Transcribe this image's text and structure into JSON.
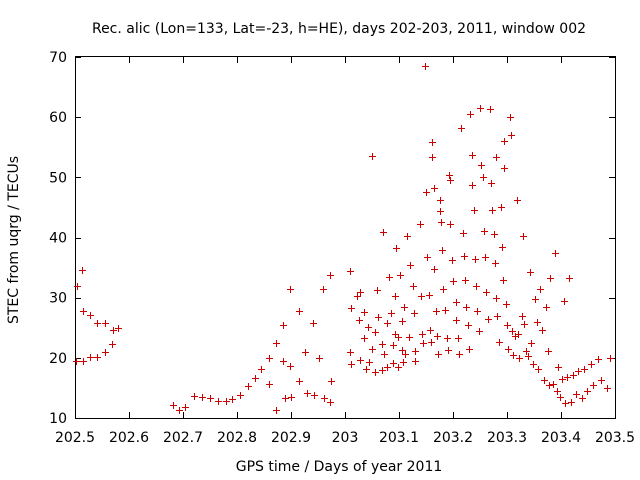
{
  "chart_data": {
    "type": "scatter",
    "title": "Rec. alic (Lon=133, Lat=-23, h=HE), days 202-203, 2011, window 002",
    "xlabel": "GPS time / Days of year 2011",
    "ylabel": "STEC from uqrg / TECUs",
    "xlim": [
      202.5,
      203.5
    ],
    "ylim": [
      10,
      70
    ],
    "grid": false,
    "legend": "none",
    "x_ticks": [
      202.5,
      202.6,
      202.7,
      202.8,
      202.9,
      203.0,
      203.1,
      203.2,
      203.3,
      203.4,
      203.5
    ],
    "x_tick_labels": [
      "202.5",
      "202.6",
      "202.7",
      "202.8",
      "202.9",
      "203",
      "203.1",
      "203.2",
      "203.3",
      "203.4",
      "203.5"
    ],
    "y_ticks": [
      10,
      20,
      30,
      40,
      50,
      60,
      70
    ],
    "y_tick_labels": [
      "10",
      "20",
      "30",
      "40",
      "50",
      "60",
      "70"
    ],
    "marker": "+",
    "color": "#cc0000",
    "series": [
      {
        "name": "STEC",
        "points": [
          [
            202.503,
            32.0
          ],
          [
            202.513,
            34.6
          ],
          [
            202.515,
            27.8
          ],
          [
            202.528,
            27.2
          ],
          [
            202.54,
            25.8
          ],
          [
            202.555,
            25.8
          ],
          [
            202.57,
            24.7
          ],
          [
            202.58,
            25.0
          ],
          [
            202.568,
            22.3
          ],
          [
            202.502,
            19.5
          ],
          [
            202.515,
            19.4
          ],
          [
            202.528,
            20.2
          ],
          [
            202.54,
            20.2
          ],
          [
            202.555,
            21.0
          ],
          [
            202.682,
            12.2
          ],
          [
            202.693,
            11.3
          ],
          [
            202.703,
            11.8
          ],
          [
            202.72,
            13.6
          ],
          [
            202.735,
            13.5
          ],
          [
            202.75,
            13.3
          ],
          [
            202.765,
            12.8
          ],
          [
            202.78,
            12.8
          ],
          [
            202.79,
            13.2
          ],
          [
            202.805,
            13.9
          ],
          [
            202.82,
            15.3
          ],
          [
            202.833,
            16.6
          ],
          [
            202.845,
            18.2
          ],
          [
            202.86,
            19.9
          ],
          [
            202.86,
            15.7
          ],
          [
            202.872,
            22.5
          ],
          [
            202.873,
            11.3
          ],
          [
            202.885,
            25.5
          ],
          [
            202.885,
            19.5
          ],
          [
            202.888,
            13.3
          ],
          [
            202.898,
            31.5
          ],
          [
            202.898,
            18.6
          ],
          [
            202.9,
            13.5
          ],
          [
            202.915,
            27.8
          ],
          [
            202.915,
            16.2
          ],
          [
            202.925,
            21.0
          ],
          [
            202.93,
            14.1
          ],
          [
            202.94,
            25.8
          ],
          [
            202.942,
            13.8
          ],
          [
            202.952,
            20.0
          ],
          [
            202.96,
            31.5
          ],
          [
            202.962,
            13.3
          ],
          [
            202.972,
            33.8
          ],
          [
            202.972,
            12.7
          ],
          [
            202.975,
            16.2
          ],
          [
            203.01,
            34.4
          ],
          [
            203.012,
            28.3
          ],
          [
            203.01,
            21.0
          ],
          [
            203.012,
            18.9
          ],
          [
            203.022,
            30.2
          ],
          [
            203.025,
            26.3
          ],
          [
            203.028,
            19.6
          ],
          [
            203.028,
            31.0
          ],
          [
            203.035,
            27.7
          ],
          [
            203.035,
            23.3
          ],
          [
            203.038,
            18.2
          ],
          [
            203.042,
            25.2
          ],
          [
            203.045,
            19.3
          ],
          [
            203.05,
            53.5
          ],
          [
            203.05,
            21.5
          ],
          [
            203.055,
            24.3
          ],
          [
            203.055,
            17.7
          ],
          [
            203.06,
            31.3
          ],
          [
            203.062,
            26.8
          ],
          [
            203.068,
            22.3
          ],
          [
            203.068,
            17.9
          ],
          [
            203.07,
            40.9
          ],
          [
            203.072,
            20.7
          ],
          [
            203.078,
            25.8
          ],
          [
            203.078,
            18.4
          ],
          [
            203.082,
            33.5
          ],
          [
            203.085,
            27.5
          ],
          [
            203.088,
            22.2
          ],
          [
            203.088,
            19.2
          ],
          [
            203.092,
            24.0
          ],
          [
            203.092,
            30.2
          ],
          [
            203.095,
            38.2
          ],
          [
            203.098,
            23.5
          ],
          [
            203.098,
            18.5
          ],
          [
            203.102,
            33.7
          ],
          [
            203.105,
            26.2
          ],
          [
            203.105,
            21.3
          ],
          [
            203.108,
            19.3
          ],
          [
            203.11,
            28.5
          ],
          [
            203.112,
            20.7
          ],
          [
            203.115,
            40.2
          ],
          [
            203.118,
            23.5
          ],
          [
            203.12,
            35.5
          ],
          [
            203.125,
            32.0
          ],
          [
            203.128,
            27.4
          ],
          [
            203.13,
            21.2
          ],
          [
            203.13,
            19.5
          ],
          [
            203.138,
            42.2
          ],
          [
            203.14,
            30.2
          ],
          [
            203.142,
            24.0
          ],
          [
            203.145,
            22.5
          ],
          [
            203.148,
            68.5
          ],
          [
            203.15,
            47.5
          ],
          [
            203.152,
            36.7
          ],
          [
            203.155,
            30.5
          ],
          [
            203.158,
            24.7
          ],
          [
            203.16,
            22.6
          ],
          [
            203.162,
            55.8
          ],
          [
            203.162,
            53.3
          ],
          [
            203.165,
            48.3
          ],
          [
            203.165,
            34.7
          ],
          [
            203.168,
            27.8
          ],
          [
            203.17,
            23.7
          ],
          [
            203.172,
            20.7
          ],
          [
            203.175,
            46.2
          ],
          [
            203.175,
            44.4
          ],
          [
            203.178,
            42.5
          ],
          [
            203.18,
            38.0
          ],
          [
            203.182,
            31.5
          ],
          [
            203.185,
            28.0
          ],
          [
            203.188,
            23.3
          ],
          [
            203.19,
            21.3
          ],
          [
            203.192,
            50.4
          ],
          [
            203.195,
            49.5
          ],
          [
            203.195,
            42.2
          ],
          [
            203.198,
            36.3
          ],
          [
            203.2,
            32.7
          ],
          [
            203.205,
            29.3
          ],
          [
            203.205,
            26.3
          ],
          [
            203.21,
            23.3
          ],
          [
            203.212,
            20.6
          ],
          [
            203.215,
            58.2
          ],
          [
            203.218,
            40.7
          ],
          [
            203.22,
            37.0
          ],
          [
            203.222,
            33.0
          ],
          [
            203.225,
            28.4
          ],
          [
            203.228,
            25.5
          ],
          [
            203.23,
            21.5
          ],
          [
            203.232,
            60.5
          ],
          [
            203.235,
            53.7
          ],
          [
            203.235,
            48.7
          ],
          [
            203.238,
            44.5
          ],
          [
            203.24,
            36.5
          ],
          [
            203.242,
            32.0
          ],
          [
            203.245,
            27.8
          ],
          [
            203.248,
            24.5
          ],
          [
            203.25,
            61.5
          ],
          [
            203.252,
            52.0
          ],
          [
            203.255,
            50.0
          ],
          [
            203.258,
            41.0
          ],
          [
            203.26,
            36.7
          ],
          [
            203.262,
            31.0
          ],
          [
            203.265,
            26.5
          ],
          [
            203.268,
            61.3
          ],
          [
            203.27,
            49.0
          ],
          [
            203.272,
            44.5
          ],
          [
            203.275,
            40.5
          ],
          [
            203.278,
            35.7
          ],
          [
            203.28,
            53.3
          ],
          [
            203.28,
            30.0
          ],
          [
            203.282,
            27.0
          ],
          [
            203.285,
            22.7
          ],
          [
            203.288,
            45.0
          ],
          [
            203.29,
            38.5
          ],
          [
            203.292,
            33.0
          ],
          [
            203.295,
            56.0
          ],
          [
            203.295,
            51.5
          ],
          [
            203.298,
            29.0
          ],
          [
            203.3,
            25.5
          ],
          [
            203.302,
            21.5
          ],
          [
            203.305,
            60.0
          ],
          [
            203.308,
            57.0
          ],
          [
            203.31,
            24.5
          ],
          [
            203.312,
            20.5
          ],
          [
            203.315,
            23.7
          ],
          [
            203.318,
            46.3
          ],
          [
            203.32,
            24.0
          ],
          [
            203.322,
            20.0
          ],
          [
            203.328,
            27.0
          ],
          [
            203.33,
            40.2
          ],
          [
            203.332,
            25.7
          ],
          [
            203.335,
            21.2
          ],
          [
            203.338,
            20.3
          ],
          [
            203.342,
            34.2
          ],
          [
            203.345,
            22.5
          ],
          [
            203.348,
            19.0
          ],
          [
            203.352,
            29.7
          ],
          [
            203.355,
            26.0
          ],
          [
            203.358,
            18.2
          ],
          [
            203.362,
            31.5
          ],
          [
            203.365,
            24.7
          ],
          [
            203.368,
            16.3
          ],
          [
            203.372,
            28.5
          ],
          [
            203.375,
            21.2
          ],
          [
            203.378,
            15.5
          ],
          [
            203.38,
            33.3
          ],
          [
            203.385,
            15.7
          ],
          [
            203.388,
            37.5
          ],
          [
            203.392,
            14.5
          ],
          [
            203.395,
            18.5
          ],
          [
            203.398,
            13.5
          ],
          [
            203.402,
            16.5
          ],
          [
            203.405,
            29.5
          ],
          [
            203.408,
            12.5
          ],
          [
            203.412,
            16.8
          ],
          [
            203.415,
            33.2
          ],
          [
            203.418,
            12.6
          ],
          [
            203.422,
            17.2
          ],
          [
            203.428,
            14.0
          ],
          [
            203.432,
            17.8
          ],
          [
            203.438,
            13.3
          ],
          [
            203.442,
            18.2
          ],
          [
            203.448,
            14.5
          ],
          [
            203.455,
            19.0
          ],
          [
            203.46,
            15.5
          ],
          [
            203.468,
            19.8
          ],
          [
            203.475,
            16.3
          ],
          [
            203.485,
            15.0
          ],
          [
            203.49,
            20.0
          ]
        ]
      }
    ]
  }
}
